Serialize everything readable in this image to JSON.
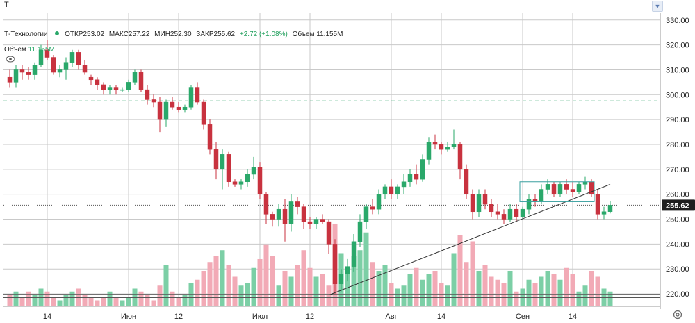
{
  "symbol_input": {
    "value": "T"
  },
  "legend": {
    "name": "Т-Технологии",
    "open_label": "ОТКР",
    "open": "253.02",
    "high_label": "МАКС",
    "high": "257.22",
    "low_label": "МИН",
    "low": "252.30",
    "close_label": "ЗАКР",
    "close": "255.62",
    "change": "+2.72 (+1.08%)",
    "volume_label": "Объем",
    "volume": "11.155M"
  },
  "volume_legend": {
    "label": "Объем",
    "value": "11.155M"
  },
  "colors": {
    "up": "#2aa86a",
    "down": "#c8323f",
    "up_vol": "#7ccfa6",
    "down_vol": "#f2aab6",
    "grid": "#c9c9c9",
    "dashed": "#39a870",
    "trendline": "#333333"
  },
  "icons": {
    "eye": "eye-icon",
    "settings": "settings-icon",
    "dropdown": "chevron-down-icon"
  },
  "chart_data": {
    "type": "candlestick",
    "y_axis": {
      "ylim": [
        215,
        333
      ],
      "ticks": [
        "220.00",
        "230.00",
        "240.00",
        "250.00",
        "260.00",
        "270.00",
        "280.00",
        "290.00",
        "300.00",
        "310.00",
        "320.00",
        "330.00"
      ]
    },
    "x_ticks": [
      {
        "label": "14",
        "index": 6
      },
      {
        "label": "Июн",
        "index": 19
      },
      {
        "label": "12",
        "index": 27
      },
      {
        "label": "Июл",
        "index": 40
      },
      {
        "label": "12",
        "index": 48
      },
      {
        "label": "Авг",
        "index": 61
      },
      {
        "label": "14",
        "index": 69
      },
      {
        "label": "Сен",
        "index": 82
      },
      {
        "label": "14",
        "index": 90
      }
    ],
    "last_price": "255.62",
    "last_price_value": 255.62,
    "dashed_level": 297.5,
    "trendline": {
      "from": {
        "index": 51,
        "price": 219.5
      },
      "to": {
        "index": 96,
        "price": 264
      }
    },
    "box": {
      "from_index": 82,
      "to_index": 93,
      "top": 265,
      "bottom": 257
    },
    "ohlc": [
      [
        307.0,
        310.0,
        303.0,
        305.0
      ],
      [
        305.0,
        312.0,
        303.0,
        310.0
      ],
      [
        310.0,
        312.0,
        306.0,
        309.0
      ],
      [
        309.0,
        311.0,
        306.0,
        308.0
      ],
      [
        308.0,
        313.0,
        306.0,
        312.0
      ],
      [
        312.0,
        320.0,
        311.0,
        318.0
      ],
      [
        318.0,
        322.0,
        314.0,
        315.0
      ],
      [
        315.0,
        316.0,
        308.0,
        309.0
      ],
      [
        309.0,
        312.0,
        307.0,
        310.0
      ],
      [
        310.0,
        315.0,
        306.0,
        313.0
      ],
      [
        313.0,
        318.0,
        311.0,
        317.0
      ],
      [
        317.0,
        318.0,
        310.0,
        312.0
      ],
      [
        312.0,
        314.0,
        308.0,
        309.0
      ],
      [
        307.0,
        308.0,
        304.0,
        306.0
      ],
      [
        306.0,
        307.0,
        302.0,
        304.0
      ],
      [
        304.0,
        305.0,
        300.0,
        302.0
      ],
      [
        302.0,
        304.0,
        300.0,
        303.0
      ],
      [
        303.0,
        304.0,
        300.0,
        302.0
      ],
      [
        302.0,
        303.0,
        301.0,
        302.0
      ],
      [
        302.0,
        306.0,
        301.0,
        305.0
      ],
      [
        305.0,
        310.0,
        304.0,
        309.0
      ],
      [
        309.0,
        310.0,
        301.0,
        302.0
      ],
      [
        302.0,
        304.0,
        296.0,
        298.0
      ],
      [
        298.0,
        300.0,
        295.0,
        297.0
      ],
      [
        297.0,
        299.0,
        285.0,
        290.0
      ],
      [
        290.0,
        298.0,
        287.0,
        297.0
      ],
      [
        297.0,
        299.0,
        294.0,
        295.0
      ],
      [
        295.0,
        297.0,
        293.0,
        294.0
      ],
      [
        294.0,
        296.0,
        293.0,
        295.0
      ],
      [
        295.0,
        304.0,
        294.0,
        303.0
      ],
      [
        303.0,
        305.0,
        296.0,
        297.0
      ],
      [
        297.0,
        298.0,
        286.0,
        288.0
      ],
      [
        288.0,
        290.0,
        276.0,
        278.0
      ],
      [
        278.0,
        281.0,
        266.0,
        270.0
      ],
      [
        270.0,
        278.0,
        262.0,
        276.0
      ],
      [
        276.0,
        277.0,
        263.0,
        265.0
      ],
      [
        265.0,
        266.0,
        263.0,
        264.0
      ],
      [
        264.0,
        266.0,
        262.0,
        265.0
      ],
      [
        265.0,
        270.0,
        263.0,
        268.0
      ],
      [
        268.0,
        275.0,
        266.0,
        271.0
      ],
      [
        271.0,
        273.0,
        258.0,
        260.0
      ],
      [
        260.0,
        261.0,
        248.0,
        252.0
      ],
      [
        252.0,
        253.0,
        247.0,
        250.0
      ],
      [
        250.0,
        256.0,
        247.0,
        254.0
      ],
      [
        254.0,
        258.0,
        241.0,
        248.0
      ],
      [
        248.0,
        260.0,
        245.0,
        257.0
      ],
      [
        257.0,
        259.0,
        252.0,
        255.0
      ],
      [
        255.0,
        256.0,
        246.0,
        249.0
      ],
      [
        249.0,
        251.0,
        246.0,
        248.0
      ],
      [
        248.0,
        251.0,
        246.0,
        250.0
      ],
      [
        250.0,
        252.0,
        248.0,
        249.0
      ],
      [
        249.0,
        250.0,
        236.0,
        240.0
      ],
      [
        240.0,
        242.0,
        220.0,
        224.0
      ],
      [
        224.0,
        230.0,
        221.0,
        228.0
      ],
      [
        228.0,
        234.0,
        225.0,
        231.0
      ],
      [
        231.0,
        244.0,
        229.0,
        241.0
      ],
      [
        241.0,
        252.0,
        239.0,
        249.0
      ],
      [
        249.0,
        256.0,
        246.0,
        255.0
      ],
      [
        255.0,
        258.0,
        252.0,
        254.0
      ],
      [
        254.0,
        262.0,
        252.0,
        260.0
      ],
      [
        260.0,
        264.0,
        258.0,
        263.0
      ],
      [
        263.0,
        266.0,
        258.0,
        260.0
      ],
      [
        260.0,
        264.0,
        258.0,
        263.0
      ],
      [
        263.0,
        268.0,
        260.0,
        265.0
      ],
      [
        265.0,
        270.0,
        263.0,
        268.0
      ],
      [
        268.0,
        272.0,
        264.0,
        266.0
      ],
      [
        266.0,
        276.0,
        265.0,
        274.0
      ],
      [
        274.0,
        283.0,
        272.0,
        281.0
      ],
      [
        281.0,
        284.0,
        278.0,
        280.0
      ],
      [
        280.0,
        281.0,
        276.0,
        278.0
      ],
      [
        278.0,
        281.0,
        277.0,
        279.0
      ],
      [
        279.0,
        286.0,
        278.0,
        280.0
      ],
      [
        280.0,
        281.0,
        266.0,
        270.0
      ],
      [
        270.0,
        272.0,
        258.0,
        260.0
      ],
      [
        260.0,
        262.0,
        250.0,
        253.0
      ],
      [
        253.0,
        262.0,
        251.0,
        260.0
      ],
      [
        260.0,
        262.0,
        254.0,
        256.0
      ],
      [
        256.0,
        258.0,
        251.0,
        253.0
      ],
      [
        253.0,
        256.0,
        250.0,
        252.0
      ],
      [
        252.0,
        254.0,
        248.0,
        250.0
      ],
      [
        250.0,
        256.0,
        249.0,
        254.0
      ],
      [
        254.0,
        256.0,
        249.0,
        251.0
      ],
      [
        251.0,
        255.0,
        250.0,
        254.0
      ],
      [
        254.0,
        260.0,
        252.0,
        258.0
      ],
      [
        258.0,
        260.0,
        255.0,
        257.0
      ],
      [
        257.0,
        264.0,
        256.0,
        262.0
      ],
      [
        262.0,
        266.0,
        260.0,
        264.0
      ],
      [
        264.0,
        265.0,
        259.0,
        260.0
      ],
      [
        260.0,
        265.0,
        259.0,
        264.0
      ],
      [
        264.0,
        266.0,
        260.0,
        262.0
      ],
      [
        262.0,
        265.0,
        259.0,
        261.0
      ],
      [
        261.0,
        265.0,
        260.0,
        264.0
      ],
      [
        264.0,
        267.0,
        262.0,
        265.0
      ],
      [
        265.0,
        266.0,
        259.0,
        260.0
      ],
      [
        260.0,
        262.0,
        250.0,
        252.0
      ],
      [
        252.0,
        255.0,
        250.0,
        253.0
      ],
      [
        253.02,
        257.22,
        252.3,
        255.62
      ]
    ],
    "volume": [
      4.0,
      5.0,
      3.0,
      5.0,
      4.0,
      6.0,
      5.0,
      3.0,
      2.0,
      4.0,
      5.0,
      6.0,
      4.0,
      3.0,
      2.0,
      3.0,
      5.0,
      3.0,
      2.0,
      3.0,
      6.0,
      5.0,
      4.0,
      2.0,
      7.0,
      14.0,
      5.0,
      3.0,
      4.0,
      8.0,
      9.0,
      12.0,
      15.0,
      17.0,
      19.0,
      14.0,
      10.0,
      7.0,
      8.0,
      13.0,
      16.0,
      21.0,
      17.0,
      7.0,
      12.0,
      10.0,
      14.0,
      19.0,
      13.0,
      10.0,
      11.0,
      7.0,
      28.0,
      18.0,
      12.0,
      17.0,
      19.0,
      25.0,
      15.0,
      12.0,
      14.0,
      8.0,
      6.0,
      7.0,
      11.0,
      13.0,
      9.0,
      11.0,
      12.0,
      8.0,
      7.0,
      18.0,
      24.0,
      15.0,
      22.0,
      12.0,
      14.0,
      10.0,
      9.0,
      8.0,
      12.0,
      5.0,
      6.0,
      9.0,
      8.0,
      10.0,
      12.0,
      11.0,
      9.0,
      13.0,
      11.0,
      5.0,
      7.0,
      12.0,
      10.0,
      6.0,
      5.0
    ],
    "volume_ylim": [
      0,
      20
    ]
  }
}
